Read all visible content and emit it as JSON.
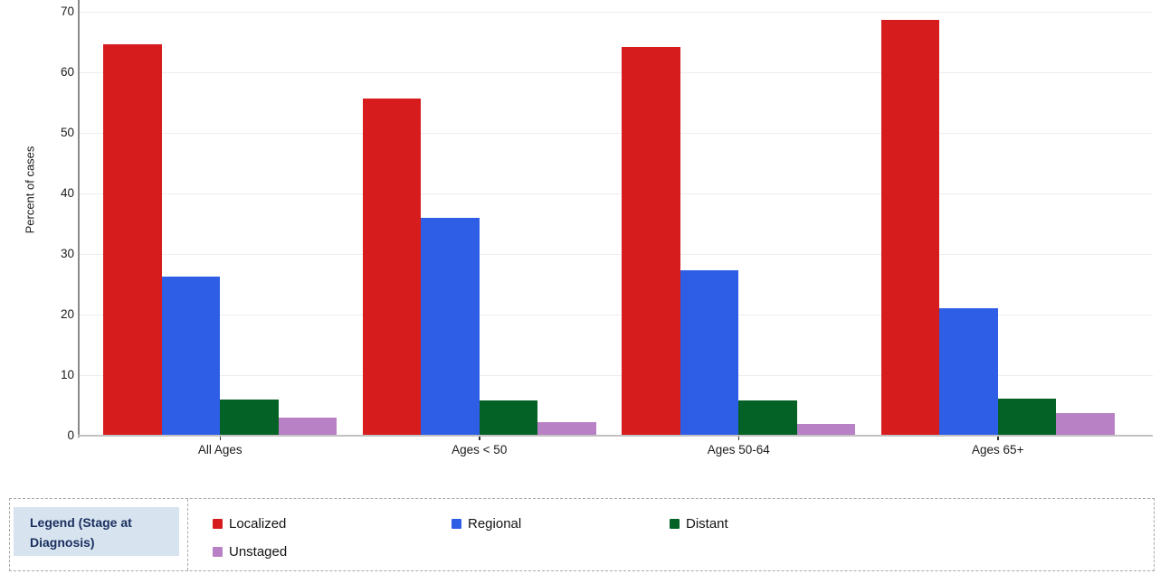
{
  "chart_data": {
    "type": "bar",
    "title": "",
    "xlabel": "",
    "ylabel": "Percent of cases",
    "categories": [
      "All Ages",
      "Ages < 50",
      "Ages 50-64",
      "Ages 65+"
    ],
    "series": [
      {
        "name": "Localized",
        "color": "#d71c1e",
        "values": [
          64.7,
          55.6,
          64.2,
          68.7
        ]
      },
      {
        "name": "Regional",
        "color": "#2f5ee6",
        "values": [
          26.2,
          36.0,
          27.3,
          21.1
        ]
      },
      {
        "name": "Distant",
        "color": "#046227",
        "values": [
          6.0,
          5.8,
          5.8,
          6.1
        ]
      },
      {
        "name": "Unstaged",
        "color": "#b981c5",
        "values": [
          3.0,
          2.3,
          2.0,
          3.7
        ]
      }
    ],
    "ylim": [
      0,
      72
    ],
    "y_ticks": [
      0,
      10,
      20,
      30,
      40,
      50,
      60,
      70
    ],
    "grid": true,
    "legend_position": "bottom"
  },
  "legend": {
    "title_lines": [
      "Legend (Stage at",
      "Diagnosis)"
    ],
    "items": [
      "Localized",
      "Regional",
      "Distant",
      "Unstaged"
    ]
  },
  "theme": {
    "grid_color": "#ededed",
    "axis_line_color": "#c2c2c2",
    "spine_color": "#8a8a8a",
    "tick_color": "#333333",
    "text_color": "#1b1b1b",
    "legend_border_color": "#a8a8a8",
    "legend_title_bg": "#d7e3ef",
    "legend_title_color": "#1b3060"
  }
}
